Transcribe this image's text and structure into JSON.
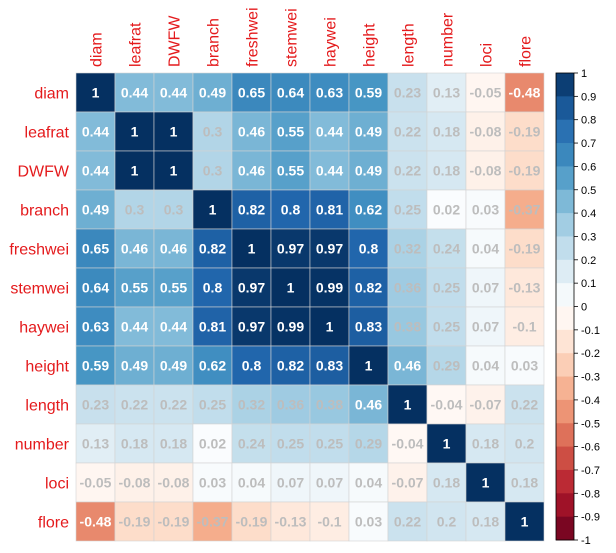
{
  "chart_data": {
    "type": "heatmap",
    "title": "",
    "variables": [
      "diam",
      "leafrat",
      "DWFW",
      "branch",
      "freshwei",
      "stemwei",
      "haywei",
      "height",
      "length",
      "number",
      "loci",
      "flore"
    ],
    "values": [
      [
        1,
        0.44,
        0.44,
        0.49,
        0.65,
        0.64,
        0.63,
        0.59,
        0.23,
        0.13,
        -0.05,
        -0.48
      ],
      [
        0.44,
        1,
        1,
        0.3,
        0.46,
        0.55,
        0.44,
        0.49,
        0.22,
        0.18,
        -0.08,
        -0.19
      ],
      [
        0.44,
        1,
        1,
        0.3,
        0.46,
        0.55,
        0.44,
        0.49,
        0.22,
        0.18,
        -0.08,
        -0.19
      ],
      [
        0.49,
        0.3,
        0.3,
        1,
        0.82,
        0.8,
        0.81,
        0.62,
        0.25,
        0.02,
        0.03,
        -0.37
      ],
      [
        0.65,
        0.46,
        0.46,
        0.82,
        1,
        0.97,
        0.97,
        0.8,
        0.32,
        0.24,
        0.04,
        -0.19
      ],
      [
        0.64,
        0.55,
        0.55,
        0.8,
        0.97,
        1,
        0.99,
        0.82,
        0.36,
        0.25,
        0.07,
        -0.13
      ],
      [
        0.63,
        0.44,
        0.44,
        0.81,
        0.97,
        0.99,
        1,
        0.83,
        0.38,
        0.25,
        0.07,
        -0.1
      ],
      [
        0.59,
        0.49,
        0.49,
        0.62,
        0.8,
        0.82,
        0.83,
        1,
        0.46,
        0.29,
        0.04,
        0.03
      ],
      [
        0.23,
        0.22,
        0.22,
        0.25,
        0.32,
        0.36,
        0.38,
        0.46,
        1,
        -0.04,
        -0.07,
        0.22
      ],
      [
        0.13,
        0.18,
        0.18,
        0.02,
        0.24,
        0.25,
        0.25,
        0.29,
        -0.04,
        1,
        0.18,
        0.2
      ],
      [
        -0.05,
        -0.08,
        -0.08,
        0.03,
        0.04,
        0.07,
        0.07,
        0.04,
        -0.07,
        0.18,
        1,
        0.18
      ],
      [
        -0.48,
        -0.19,
        -0.19,
        -0.37,
        -0.19,
        -0.13,
        -0.1,
        0.03,
        0.22,
        0.2,
        0.18,
        1
      ]
    ],
    "value_labels": [
      [
        "1",
        "0.44",
        "0.44",
        "0.49",
        "0.65",
        "0.64",
        "0.63",
        "0.59",
        "0.23",
        "0.13",
        "-0.05",
        "-0.48"
      ],
      [
        "0.44",
        "1",
        "1",
        "0.3",
        "0.46",
        "0.55",
        "0.44",
        "0.49",
        "0.22",
        "0.18",
        "-0.08",
        "-0.19"
      ],
      [
        "0.44",
        "1",
        "1",
        "0.3",
        "0.46",
        "0.55",
        "0.44",
        "0.49",
        "0.22",
        "0.18",
        "-0.08",
        "-0.19"
      ],
      [
        "0.49",
        "0.3",
        "0.3",
        "1",
        "0.82",
        "0.8",
        "0.81",
        "0.62",
        "0.25",
        "0.02",
        "0.03",
        "-0.37"
      ],
      [
        "0.65",
        "0.46",
        "0.46",
        "0.82",
        "1",
        "0.97",
        "0.97",
        "0.8",
        "0.32",
        "0.24",
        "0.04",
        "-0.19"
      ],
      [
        "0.64",
        "0.55",
        "0.55",
        "0.8",
        "0.97",
        "1",
        "0.99",
        "0.82",
        "0.36",
        "0.25",
        "0.07",
        "-0.13"
      ],
      [
        "0.63",
        "0.44",
        "0.44",
        "0.81",
        "0.97",
        "0.99",
        "1",
        "0.83",
        "0.38",
        "0.25",
        "0.07",
        "-0.1"
      ],
      [
        "0.59",
        "0.49",
        "0.49",
        "0.62",
        "0.8",
        "0.82",
        "0.83",
        "1",
        "0.46",
        "0.29",
        "0.04",
        "0.03"
      ],
      [
        "0.23",
        "0.22",
        "0.22",
        "0.25",
        "0.32",
        "0.36",
        "0.38",
        "0.46",
        "1",
        "-0.04",
        "-0.07",
        "0.22"
      ],
      [
        "0.13",
        "0.18",
        "0.18",
        "0.02",
        "0.24",
        "0.25",
        "0.25",
        "0.29",
        "-0.04",
        "1",
        "0.18",
        "0.2"
      ],
      [
        "-0.05",
        "-0.08",
        "-0.08",
        "0.03",
        "0.04",
        "0.07",
        "0.07",
        "0.04",
        "-0.07",
        "0.18",
        "1",
        "0.18"
      ],
      [
        "-0.48",
        "-0.19",
        "-0.19",
        "-0.37",
        "-0.19",
        "-0.13",
        "-0.1",
        "0.03",
        "0.22",
        "0.2",
        "0.18",
        "1"
      ]
    ],
    "color_range": [
      -1,
      1
    ],
    "colorbar_ticks": [
      "1",
      "0.9",
      "0.8",
      "0.7",
      "0.6",
      "0.5",
      "0.4",
      "0.3",
      "0.2",
      "0.1",
      "0",
      "-0.1",
      "-0.2",
      "-0.3",
      "-0.4",
      "-0.5",
      "-0.6",
      "-0.7",
      "-0.8",
      "-0.9",
      "-1"
    ],
    "palette": [
      "#67001F",
      "#B2182B",
      "#D6604D",
      "#F4A582",
      "#FDDBC7",
      "#FFFFFF",
      "#D1E5F0",
      "#92C5DE",
      "#4393C3",
      "#2166AC",
      "#053061"
    ],
    "label_color": "#E41A1C",
    "grid_color": "#D3D3D3",
    "legend_position": "right"
  }
}
